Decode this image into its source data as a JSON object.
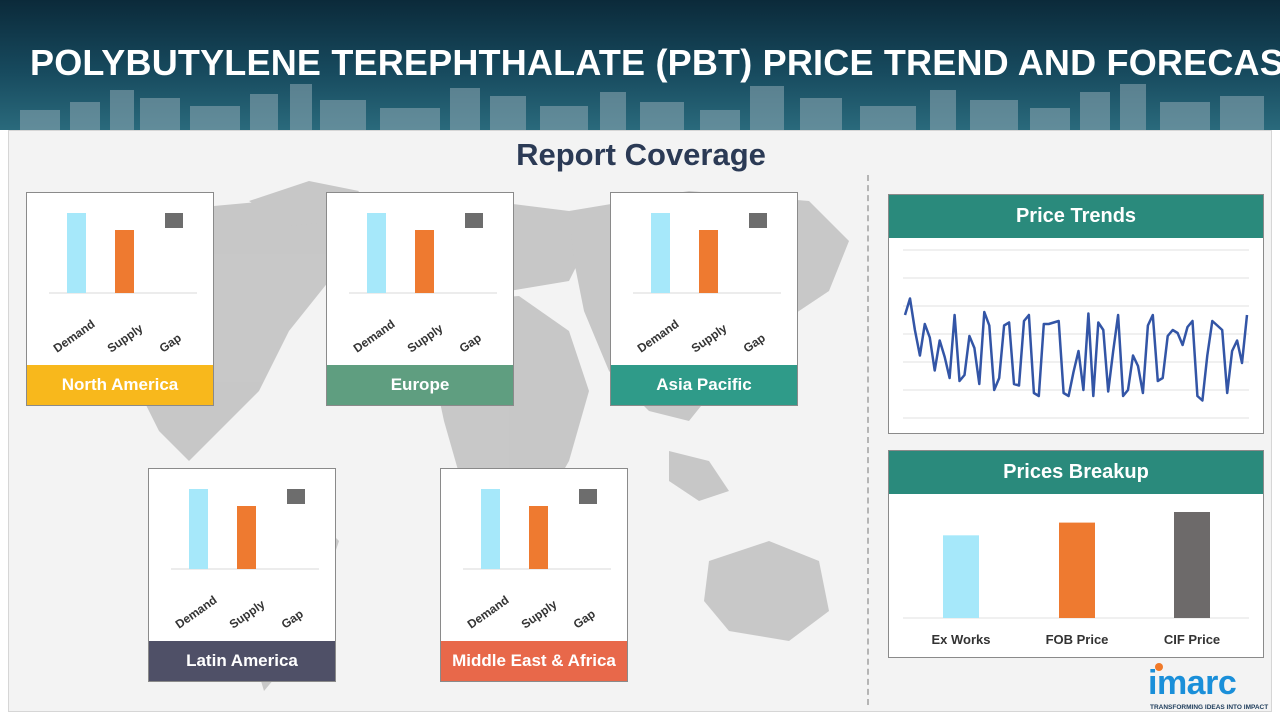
{
  "page": {
    "title": "POLYBUTYLENE TEREPHTHALATE (PBT) PRICE TREND AND FORECAST"
  },
  "coverage": {
    "title": "Report Coverage"
  },
  "regions": [
    {
      "id": "north-america",
      "label": "North America",
      "color": "#f8b81c"
    },
    {
      "id": "europe",
      "label": "Europe",
      "color": "#5f9e80"
    },
    {
      "id": "asia-pacific",
      "label": "Asia Pacific",
      "color": "#2f9b89"
    },
    {
      "id": "latin-america",
      "label": "Latin America",
      "color": "#4f5067"
    },
    {
      "id": "middle-east-africa",
      "label": "Middle East & Africa",
      "color": "#e8684a"
    }
  ],
  "colors": {
    "demand": "#a6e8fa",
    "supply": "#ee7a30",
    "gap": "#6d6d6d",
    "trend_line": "#3355a6",
    "panel_header": "#2a8a7c"
  },
  "price_trends": {
    "title": "Price Trends"
  },
  "prices_breakup": {
    "title": "Prices Breakup"
  },
  "chart_data": [
    {
      "type": "bar",
      "title": "North America",
      "categories": [
        "Demand",
        "Supply",
        "Gap"
      ],
      "values": [
        80,
        63,
        0
      ]
    },
    {
      "type": "bar",
      "title": "Europe",
      "categories": [
        "Demand",
        "Supply",
        "Gap"
      ],
      "values": [
        80,
        63,
        0
      ]
    },
    {
      "type": "bar",
      "title": "Asia Pacific",
      "categories": [
        "Demand",
        "Supply",
        "Gap"
      ],
      "values": [
        80,
        63,
        0
      ]
    },
    {
      "type": "bar",
      "title": "Latin America",
      "categories": [
        "Demand",
        "Supply",
        "Gap"
      ],
      "values": [
        80,
        63,
        0
      ]
    },
    {
      "type": "bar",
      "title": "Middle East & Africa",
      "categories": [
        "Demand",
        "Supply",
        "Gap"
      ],
      "values": [
        80,
        63,
        0
      ]
    },
    {
      "type": "line",
      "title": "Price Trends",
      "values": [
        62,
        73,
        52,
        35,
        56,
        47,
        25,
        45,
        34,
        20,
        62,
        18,
        22,
        48,
        40,
        16,
        64,
        55,
        12,
        20,
        55,
        57,
        16,
        15,
        58,
        62,
        10,
        8,
        56,
        56,
        57,
        58,
        10,
        8,
        24,
        38,
        12,
        63,
        8,
        57,
        52,
        11,
        38,
        62,
        8,
        12,
        35,
        28,
        10,
        55,
        62,
        18,
        20,
        48,
        52,
        50,
        42,
        54,
        58,
        8,
        5,
        35,
        58,
        55,
        52,
        10,
        38,
        45,
        30,
        62
      ],
      "ylim": [
        0,
        100
      ]
    },
    {
      "type": "bar",
      "title": "Prices Breakup",
      "categories": [
        "Ex Works",
        "FOB Price",
        "CIF Price"
      ],
      "values": [
        78,
        90,
        100
      ],
      "colors": [
        "#a6e8fa",
        "#ee7a30",
        "#6d6a6a"
      ]
    }
  ],
  "logo": {
    "name": "imarc",
    "tagline": "TRANSFORMING IDEAS INTO IMPACT"
  }
}
